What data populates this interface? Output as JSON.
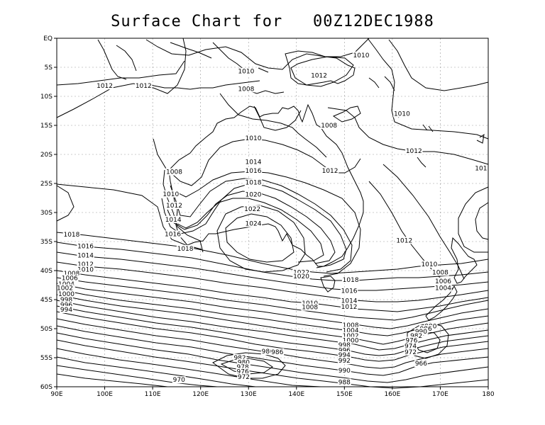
{
  "title": "Surface Chart for   00Z12DEC1988",
  "axes": {
    "lon_ticks": [
      "90E",
      "100E",
      "110E",
      "120E",
      "130E",
      "140E",
      "150E",
      "160E",
      "170E",
      "180"
    ],
    "lat_ticks": [
      "EQ",
      "5S",
      "10S",
      "15S",
      "20S",
      "25S",
      "30S",
      "35S",
      "40S",
      "45S",
      "50S",
      "55S",
      "60S"
    ],
    "lon_range": [
      90,
      180
    ],
    "lat_range": [
      0,
      -60
    ],
    "grid": true
  },
  "contour_labels": [
    {
      "text": "1012",
      "lon": 100.0,
      "lat": -8.2
    },
    {
      "text": "1012",
      "lon": 108.1,
      "lat": -8.2
    },
    {
      "text": "1010",
      "lon": 129.5,
      "lat": -5.7
    },
    {
      "text": "1008",
      "lon": 129.5,
      "lat": -8.7
    },
    {
      "text": "1010",
      "lon": 153.5,
      "lat": -2.9
    },
    {
      "text": "1012",
      "lon": 144.7,
      "lat": -6.4
    },
    {
      "text": "1008",
      "lon": 146.8,
      "lat": -15.0
    },
    {
      "text": "1010",
      "lon": 162.0,
      "lat": -13.0
    },
    {
      "text": "1012",
      "lon": 164.5,
      "lat": -19.4
    },
    {
      "text": "101",
      "lon": 178.5,
      "lat": -22.4
    },
    {
      "text": "1010",
      "lon": 131.0,
      "lat": -17.2
    },
    {
      "text": "1014",
      "lon": 131.0,
      "lat": -21.3
    },
    {
      "text": "1016",
      "lon": 131.0,
      "lat": -22.8
    },
    {
      "text": "1018",
      "lon": 131.0,
      "lat": -24.8
    },
    {
      "text": "1020",
      "lon": 131.0,
      "lat": -26.9
    },
    {
      "text": "1022",
      "lon": 130.8,
      "lat": -29.4
    },
    {
      "text": "1024",
      "lon": 131.0,
      "lat": -31.9
    },
    {
      "text": "1012",
      "lon": 147.0,
      "lat": -22.8
    },
    {
      "text": "1008",
      "lon": 114.5,
      "lat": -23.0
    },
    {
      "text": "1010",
      "lon": 113.8,
      "lat": -26.8
    },
    {
      "text": "1012",
      "lon": 114.5,
      "lat": -28.8
    },
    {
      "text": "1014",
      "lon": 114.3,
      "lat": -31.2
    },
    {
      "text": "1016",
      "lon": 114.2,
      "lat": -33.7
    },
    {
      "text": "1018",
      "lon": 116.8,
      "lat": -36.2
    },
    {
      "text": "1018",
      "lon": 93.1,
      "lat": -33.8
    },
    {
      "text": "1016",
      "lon": 96.0,
      "lat": -35.8
    },
    {
      "text": "1014",
      "lon": 96.0,
      "lat": -37.4
    },
    {
      "text": "1012",
      "lon": 96.0,
      "lat": -38.9
    },
    {
      "text": "1010",
      "lon": 96.0,
      "lat": -39.8
    },
    {
      "text": "1008",
      "lon": 93.1,
      "lat": -40.5
    },
    {
      "text": "1006",
      "lon": 92.7,
      "lat": -41.3
    },
    {
      "text": "1004",
      "lon": 92.0,
      "lat": -42.3
    },
    {
      "text": "1002",
      "lon": 91.7,
      "lat": -43.0
    },
    {
      "text": "1000",
      "lon": 92.0,
      "lat": -44.0
    },
    {
      "text": "998",
      "lon": 92.0,
      "lat": -45.0
    },
    {
      "text": "996",
      "lon": 92.0,
      "lat": -45.9
    },
    {
      "text": "994",
      "lon": 92.0,
      "lat": -46.7
    },
    {
      "text": "1022",
      "lon": 141.0,
      "lat": -40.3
    },
    {
      "text": "1020",
      "lon": 141.0,
      "lat": -41.0
    },
    {
      "text": "1018",
      "lon": 151.3,
      "lat": -41.6
    },
    {
      "text": "1016",
      "lon": 151.0,
      "lat": -43.5
    },
    {
      "text": "1014",
      "lon": 151.0,
      "lat": -45.2
    },
    {
      "text": "1012",
      "lon": 151.0,
      "lat": -46.2
    },
    {
      "text": "1010",
      "lon": 142.8,
      "lat": -45.6
    },
    {
      "text": "1008",
      "lon": 142.8,
      "lat": -46.3
    },
    {
      "text": "1008",
      "lon": 151.3,
      "lat": -49.4
    },
    {
      "text": "1004",
      "lon": 151.3,
      "lat": -50.3
    },
    {
      "text": "1002",
      "lon": 151.3,
      "lat": -51.2
    },
    {
      "text": "1000",
      "lon": 151.3,
      "lat": -52.0
    },
    {
      "text": "998",
      "lon": 150.0,
      "lat": -52.8
    },
    {
      "text": "996",
      "lon": 150.0,
      "lat": -53.7
    },
    {
      "text": "994",
      "lon": 150.0,
      "lat": -54.5
    },
    {
      "text": "992",
      "lon": 150.0,
      "lat": -55.5
    },
    {
      "text": "990",
      "lon": 150.0,
      "lat": -57.2
    },
    {
      "text": "988",
      "lon": 150.0,
      "lat": -59.2
    },
    {
      "text": "1012",
      "lon": 162.5,
      "lat": -34.8
    },
    {
      "text": "1010",
      "lon": 167.7,
      "lat": -38.9
    },
    {
      "text": "1008",
      "lon": 170.0,
      "lat": -40.3
    },
    {
      "text": "1006",
      "lon": 170.6,
      "lat": -41.8
    },
    {
      "text": "1004",
      "lon": 170.6,
      "lat": -43.0
    },
    {
      "text": "980",
      "lon": 134.0,
      "lat": -53.9
    },
    {
      "text": "986",
      "lon": 136.0,
      "lat": -54.0
    },
    {
      "text": "982",
      "lon": 128.2,
      "lat": -55.0
    },
    {
      "text": "980",
      "lon": 129.0,
      "lat": -55.8
    },
    {
      "text": "978",
      "lon": 128.8,
      "lat": -56.6
    },
    {
      "text": "976",
      "lon": 128.8,
      "lat": -57.4
    },
    {
      "text": "972",
      "lon": 129.0,
      "lat": -58.3
    },
    {
      "text": "970",
      "lon": 115.5,
      "lat": -58.8
    },
    {
      "text": "980",
      "lon": 168.0,
      "lat": -49.6
    },
    {
      "text": "986",
      "lon": 167.0,
      "lat": -50.0
    },
    {
      "text": "990",
      "lon": 166.0,
      "lat": -50.5
    },
    {
      "text": "982",
      "lon": 165.0,
      "lat": -51.2
    },
    {
      "text": "976",
      "lon": 164.0,
      "lat": -52.0
    },
    {
      "text": "974",
      "lon": 163.8,
      "lat": -53.0
    },
    {
      "text": "972",
      "lon": 163.8,
      "lat": -54.0
    },
    {
      "text": "966",
      "lon": 166.0,
      "lat": -56.0
    }
  ]
}
